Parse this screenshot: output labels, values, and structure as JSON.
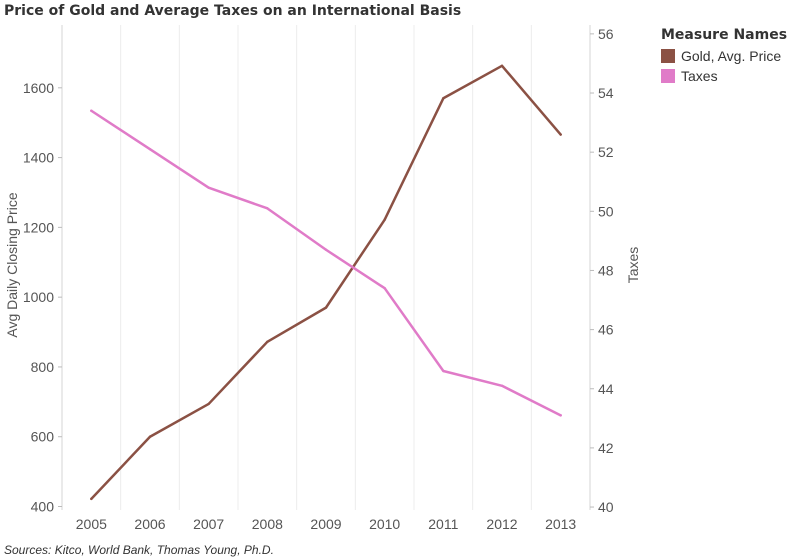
{
  "title": "Price of Gold and Average Taxes on an International Basis",
  "source": "Sources: Kitco, World Bank, Thomas Young, Ph.D.",
  "legend": {
    "title": "Measure Names",
    "items": [
      {
        "label": "Gold, Avg. Price",
        "color": "#8b5144"
      },
      {
        "label": "Taxes",
        "color": "#e07bc8"
      }
    ]
  },
  "chart_data": {
    "type": "line",
    "x": [
      "2005",
      "2006",
      "2007",
      "2008",
      "2009",
      "2010",
      "2011",
      "2012",
      "2013"
    ],
    "series": [
      {
        "name": "Gold, Avg. Price",
        "axis": "left",
        "color": "#8b5144",
        "values": [
          422,
          600,
          694,
          872,
          970,
          1222,
          1570,
          1663,
          1466
        ]
      },
      {
        "name": "Taxes",
        "axis": "right",
        "color": "#e07bc8",
        "values": [
          53.4,
          52.1,
          50.8,
          50.1,
          48.7,
          47.4,
          44.6,
          44.1,
          43.1
        ]
      }
    ],
    "ylabel": "Avg Daily Closing Price",
    "y2label": "Taxes",
    "ylim": [
      390,
      1780
    ],
    "yticks": [
      400,
      600,
      800,
      1000,
      1200,
      1400,
      1600
    ],
    "y2lim": [
      39.9,
      56.3
    ],
    "y2ticks": [
      40,
      42,
      44,
      46,
      48,
      50,
      52,
      54,
      56
    ],
    "grid": "vertical"
  }
}
